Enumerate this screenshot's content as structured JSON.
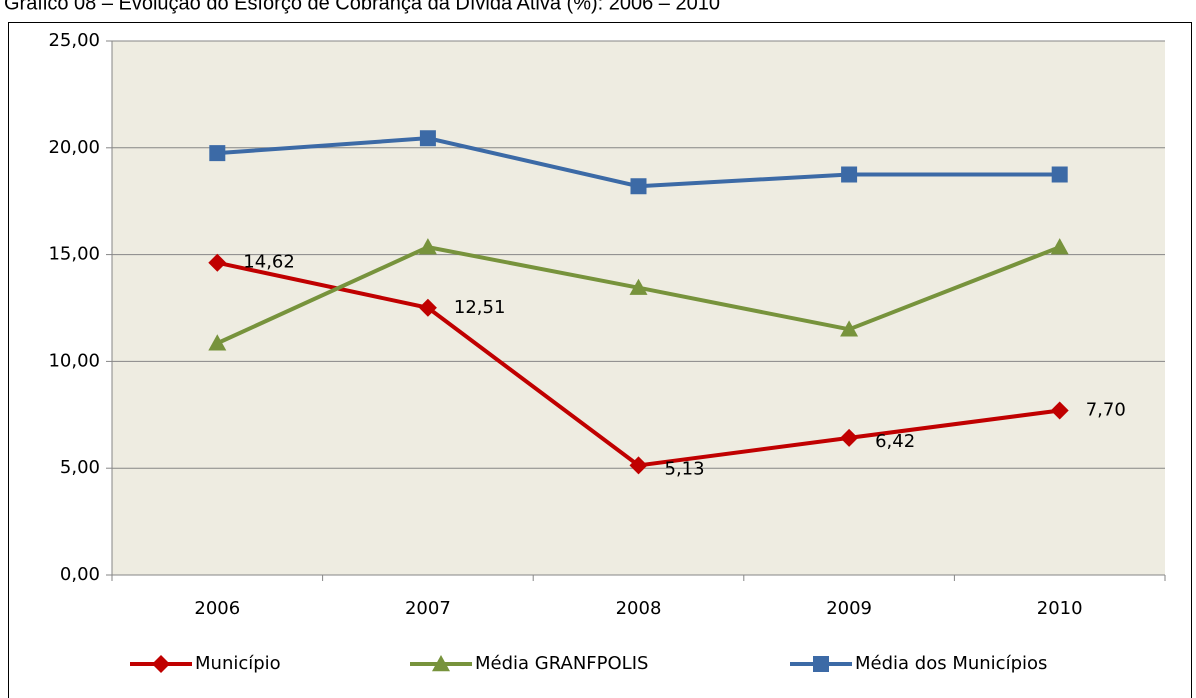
{
  "chart_data": {
    "type": "line",
    "title": "Gráfico 08 – Evolução do Esforço de Cobrança da Dívida Ativa (%): 2006 – 2010",
    "categories": [
      "2006",
      "2007",
      "2008",
      "2009",
      "2010"
    ],
    "series": [
      {
        "name": "Município",
        "color": "#c00000",
        "marker": "diamond",
        "values": [
          14.62,
          12.51,
          5.13,
          6.42,
          7.7
        ],
        "value_labels": [
          "14,62",
          "12,51",
          "5,13",
          "6,42",
          "7,70"
        ]
      },
      {
        "name": "Média GRANFPOLIS",
        "color": "#77933c",
        "marker": "triangle",
        "values": [
          10.85,
          15.35,
          13.45,
          11.5,
          15.35
        ]
      },
      {
        "name": "Média dos Municípios",
        "color": "#3c6aa6",
        "marker": "square",
        "values": [
          19.75,
          20.45,
          18.2,
          18.75,
          18.75
        ]
      }
    ],
    "ylim": [
      0,
      25
    ],
    "yticks": [
      {
        "value": 0,
        "label": "0,00"
      },
      {
        "value": 5,
        "label": "5,00"
      },
      {
        "value": 10,
        "label": "10,00"
      },
      {
        "value": 15,
        "label": "15,00"
      },
      {
        "value": 20,
        "label": "20,00"
      },
      {
        "value": 25,
        "label": "25,00"
      }
    ],
    "grid": true,
    "legend": "bottom"
  }
}
